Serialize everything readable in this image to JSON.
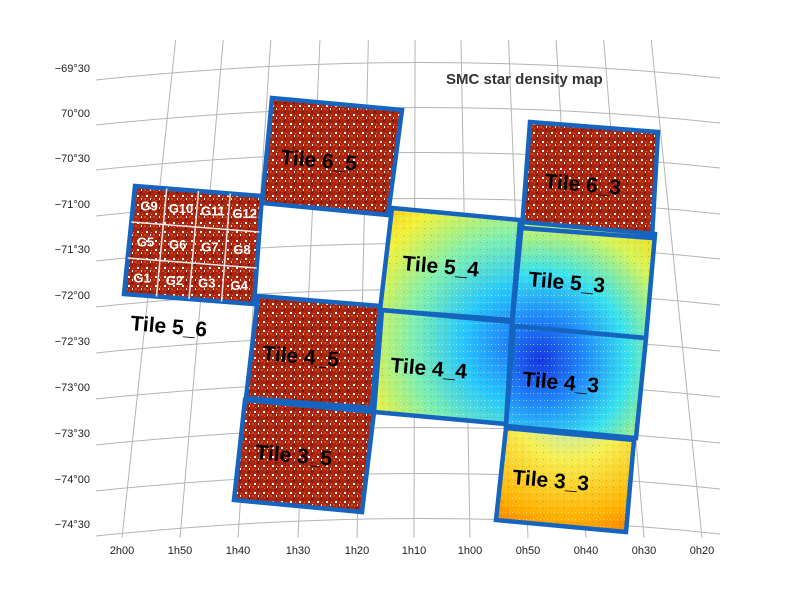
{
  "title": "SMC star density map",
  "dec_ticks": [
    "−69°30",
    "70°00",
    "−70°30",
    "−71°00",
    "−71°30",
    "−72°00",
    "−72°30",
    "−73°00",
    "−73°30",
    "−74°00",
    "−74°30"
  ],
  "ra_ticks": [
    "2h00",
    "1h50",
    "1h40",
    "1h30",
    "1h20",
    "1h10",
    "1h00",
    "0h50",
    "0h40",
    "0h30",
    "0h20"
  ],
  "tiles": [
    {
      "id": "t6_5",
      "label": "Tile 6_5",
      "density": "low"
    },
    {
      "id": "t6_3",
      "label": "Tile 6_3",
      "density": "low"
    },
    {
      "id": "t5_6",
      "label": "Tile 5_6",
      "density": "low"
    },
    {
      "id": "t5_4",
      "label": "Tile 5_4",
      "density": "high"
    },
    {
      "id": "t5_3",
      "label": "Tile 5_3",
      "density": "high"
    },
    {
      "id": "t4_5",
      "label": "Tile 4_5",
      "density": "low"
    },
    {
      "id": "t4_4",
      "label": "Tile 4_4",
      "density": "high"
    },
    {
      "id": "t4_3",
      "label": "Tile 4_3",
      "density": "peak"
    },
    {
      "id": "t3_5",
      "label": "Tile 3_5",
      "density": "low"
    },
    {
      "id": "t3_3",
      "label": "Tile 3_3",
      "density": "medium"
    }
  ],
  "subregions": [
    "G9",
    "G10",
    "G11",
    "G12",
    "G5",
    "G6",
    "G7",
    "G8",
    "G1",
    "G2",
    "G3",
    "G4"
  ],
  "colors": {
    "tile_border": "#1565c0",
    "low_density": "#b02a10",
    "high_density_core": "#0d3fd8"
  }
}
